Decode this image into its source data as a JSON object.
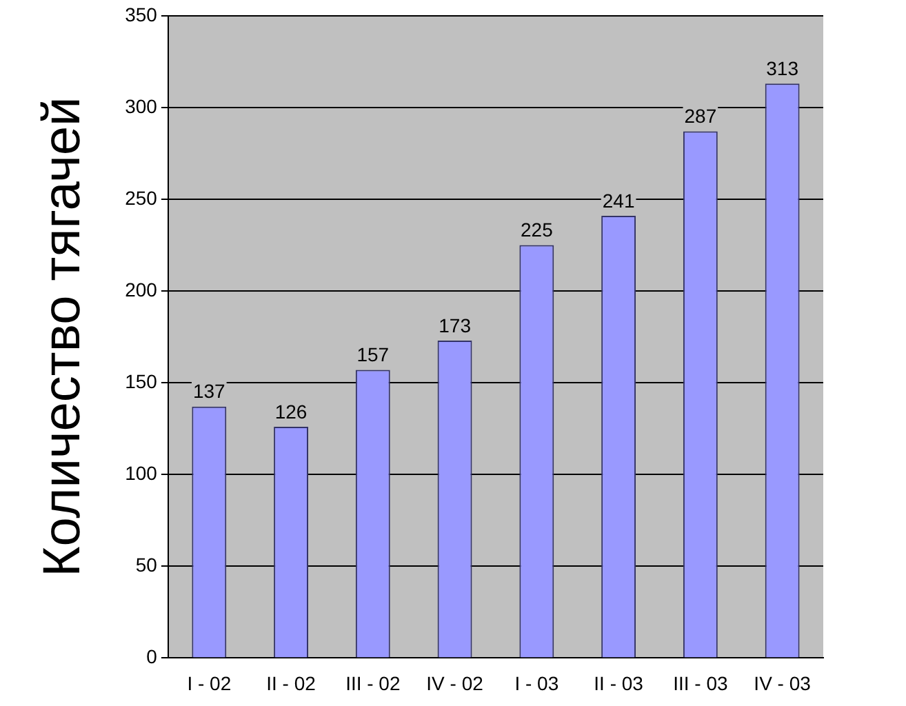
{
  "chart_data": {
    "type": "bar",
    "ylabel": "Количество тягачей",
    "categories": [
      "I - 02",
      "II - 02",
      "III - 02",
      "IV - 02",
      "I - 03",
      "II - 03",
      "III - 03",
      "IV - 03"
    ],
    "values": [
      137,
      126,
      157,
      173,
      225,
      241,
      287,
      313
    ],
    "color": "#9999ff",
    "ylim": [
      0,
      350
    ],
    "yticks": [
      0,
      50,
      100,
      150,
      200,
      250,
      300,
      350
    ],
    "grid": "y",
    "data_labels": true
  }
}
